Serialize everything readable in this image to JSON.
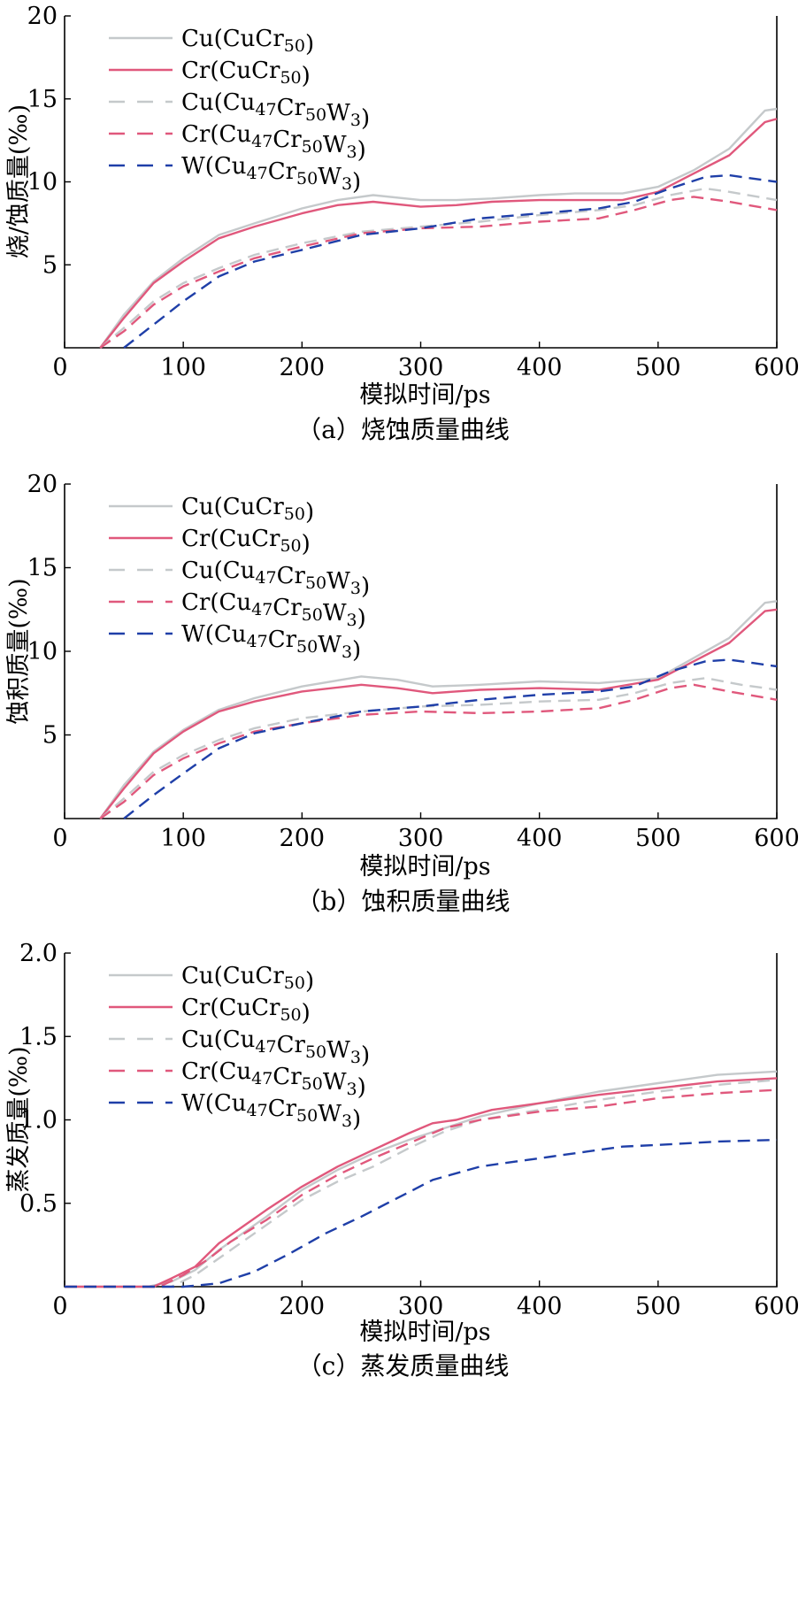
{
  "colors": {
    "cu_cucr": "#c5c9cb",
    "cr_cucr": "#e0587c",
    "cu_w": "#c5c9cb",
    "cr_w": "#e0587c",
    "w_w": "#1f3fa8"
  },
  "legend": [
    {
      "key": "cu_cucr",
      "base": "Cu(CuCr",
      "sub": "50",
      "tail": ")",
      "dash": false
    },
    {
      "key": "cr_cucr",
      "base": "Cr(CuCr",
      "sub": "50",
      "tail": ")",
      "dash": false
    },
    {
      "key": "cu_w",
      "base": "Cu(Cu",
      "sub": "47",
      "mid": "Cr",
      "sub2": "50",
      "mid2": "W",
      "sub3": "3",
      "tail": ")",
      "dash": true
    },
    {
      "key": "cr_w",
      "base": "Cr(Cu",
      "sub": "47",
      "mid": "Cr",
      "sub2": "50",
      "mid2": "W",
      "sub3": "3",
      "tail": ")",
      "dash": true
    },
    {
      "key": "w_w",
      "base": "W(Cu",
      "sub": "47",
      "mid": "Cr",
      "sub2": "50",
      "mid2": "W",
      "sub3": "3",
      "tail": ")",
      "dash": true
    }
  ],
  "chart_data": [
    {
      "type": "line",
      "caption": "（a）烧蚀质量曲线",
      "xlabel": "模拟时间/ps",
      "ylabel": "烧/蚀质量(‰)",
      "xlim": [
        0,
        600
      ],
      "ylim": [
        0,
        20
      ],
      "xticks": [
        "0",
        "100",
        "200",
        "300",
        "400",
        "500",
        "600"
      ],
      "yticks": [
        "5",
        "10",
        "15",
        "20"
      ],
      "ytick_values": [
        5,
        10,
        15,
        20
      ],
      "series": [
        {
          "name": "Cu(CuCr50)",
          "key": "cu_cucr",
          "x": [
            30,
            50,
            75,
            100,
            130,
            160,
            200,
            230,
            260,
            300,
            330,
            360,
            400,
            430,
            470,
            500,
            530,
            560,
            590,
            600
          ],
          "y": [
            0,
            2,
            4,
            5.4,
            6.8,
            7.5,
            8.4,
            8.9,
            9.2,
            8.9,
            8.9,
            9.0,
            9.2,
            9.3,
            9.3,
            9.7,
            10.7,
            12.0,
            14.3,
            14.4
          ]
        },
        {
          "name": "Cr(CuCr50)",
          "key": "cr_cucr",
          "x": [
            30,
            50,
            75,
            100,
            130,
            160,
            200,
            230,
            260,
            300,
            330,
            360,
            400,
            430,
            470,
            500,
            530,
            560,
            590,
            600
          ],
          "y": [
            0,
            1.8,
            3.9,
            5.2,
            6.6,
            7.3,
            8.1,
            8.6,
            8.8,
            8.5,
            8.6,
            8.8,
            8.9,
            8.9,
            8.9,
            9.4,
            10.5,
            11.6,
            13.6,
            13.8
          ]
        },
        {
          "name": "Cu(Cu47Cr50W3)",
          "key": "cu_w",
          "x": [
            30,
            50,
            75,
            100,
            130,
            160,
            200,
            250,
            300,
            350,
            400,
            450,
            480,
            510,
            540,
            560,
            600
          ],
          "y": [
            0,
            1.2,
            2.8,
            3.9,
            4.8,
            5.6,
            6.3,
            7.0,
            7.3,
            7.6,
            8.0,
            8.3,
            8.6,
            9.2,
            9.6,
            9.4,
            8.9
          ]
        },
        {
          "name": "Cr(Cu47Cr50W3)",
          "key": "cr_w",
          "x": [
            30,
            50,
            75,
            100,
            130,
            160,
            200,
            250,
            300,
            350,
            400,
            450,
            480,
            510,
            530,
            560,
            600
          ],
          "y": [
            0,
            1.0,
            2.6,
            3.7,
            4.6,
            5.4,
            6.1,
            6.9,
            7.2,
            7.3,
            7.6,
            7.8,
            8.3,
            8.9,
            9.1,
            8.8,
            8.3
          ]
        },
        {
          "name": "W(Cu47Cr50W3)",
          "key": "w_w",
          "x": [
            50,
            75,
            100,
            130,
            160,
            200,
            250,
            300,
            350,
            400,
            450,
            480,
            510,
            540,
            560,
            580,
            600
          ],
          "y": [
            0,
            1.4,
            2.8,
            4.3,
            5.2,
            5.9,
            6.8,
            7.2,
            7.8,
            8.1,
            8.4,
            8.8,
            9.6,
            10.3,
            10.4,
            10.2,
            10.0
          ]
        }
      ]
    },
    {
      "type": "line",
      "caption": "（b）蚀积质量曲线",
      "xlabel": "模拟时间/ps",
      "ylabel": "蚀积质量(‰)",
      "xlim": [
        0,
        600
      ],
      "ylim": [
        0,
        20
      ],
      "xticks": [
        "0",
        "100",
        "200",
        "300",
        "400",
        "500",
        "600"
      ],
      "yticks": [
        "5",
        "10",
        "15",
        "20"
      ],
      "ytick_values": [
        5,
        10,
        15,
        20
      ],
      "series": [
        {
          "name": "Cu(CuCr50)",
          "key": "cu_cucr",
          "x": [
            30,
            50,
            75,
            100,
            130,
            160,
            200,
            250,
            280,
            310,
            350,
            400,
            450,
            500,
            530,
            560,
            590,
            600
          ],
          "y": [
            0,
            2,
            4,
            5.3,
            6.5,
            7.2,
            7.9,
            8.5,
            8.3,
            7.9,
            8.0,
            8.2,
            8.1,
            8.4,
            9.6,
            10.8,
            12.9,
            13.0
          ]
        },
        {
          "name": "Cr(CuCr50)",
          "key": "cr_cucr",
          "x": [
            30,
            50,
            75,
            100,
            130,
            160,
            200,
            250,
            280,
            310,
            350,
            400,
            450,
            500,
            530,
            560,
            590,
            600
          ],
          "y": [
            0,
            1.8,
            3.9,
            5.2,
            6.4,
            7.0,
            7.6,
            8.0,
            7.8,
            7.5,
            7.7,
            7.8,
            7.7,
            8.3,
            9.4,
            10.5,
            12.4,
            12.5
          ]
        },
        {
          "name": "Cu(Cu47Cr50W3)",
          "key": "cu_w",
          "x": [
            30,
            50,
            75,
            100,
            130,
            160,
            200,
            250,
            300,
            350,
            400,
            450,
            480,
            510,
            540,
            570,
            600
          ],
          "y": [
            0,
            1.2,
            2.8,
            3.8,
            4.7,
            5.4,
            6.0,
            6.4,
            6.7,
            6.8,
            7.0,
            7.1,
            7.5,
            8.1,
            8.4,
            8.0,
            7.7
          ]
        },
        {
          "name": "Cr(Cu47Cr50W3)",
          "key": "cr_w",
          "x": [
            30,
            50,
            75,
            100,
            130,
            160,
            200,
            250,
            300,
            350,
            400,
            450,
            480,
            510,
            530,
            560,
            600
          ],
          "y": [
            0,
            1.0,
            2.6,
            3.6,
            4.5,
            5.2,
            5.7,
            6.2,
            6.4,
            6.3,
            6.4,
            6.6,
            7.1,
            7.8,
            8.0,
            7.6,
            7.1
          ]
        },
        {
          "name": "W(Cu47Cr50W3)",
          "key": "w_w",
          "x": [
            50,
            75,
            100,
            130,
            160,
            200,
            250,
            300,
            350,
            400,
            450,
            480,
            510,
            540,
            560,
            580,
            600
          ],
          "y": [
            0,
            1.4,
            2.7,
            4.2,
            5.1,
            5.7,
            6.4,
            6.7,
            7.1,
            7.4,
            7.6,
            7.9,
            8.8,
            9.4,
            9.5,
            9.3,
            9.1
          ]
        }
      ]
    },
    {
      "type": "line",
      "caption": "（c）蒸发质量曲线",
      "xlabel": "模拟时间/ps",
      "ylabel": "蒸发质量(‰)",
      "xlim": [
        0,
        600
      ],
      "ylim": [
        0,
        2.0
      ],
      "xticks": [
        "0",
        "100",
        "200",
        "300",
        "400",
        "500",
        "600"
      ],
      "yticks": [
        "0.5",
        "1.0",
        "1.5",
        "2.0"
      ],
      "ytick_values": [
        0.5,
        1.0,
        1.5,
        2.0
      ],
      "series": [
        {
          "name": "Cu(CuCr50)",
          "key": "cu_cucr",
          "x": [
            0,
            70,
            90,
            110,
            130,
            150,
            170,
            200,
            230,
            260,
            290,
            320,
            350,
            400,
            450,
            500,
            550,
            600
          ],
          "y": [
            0,
            0,
            0.03,
            0.1,
            0.22,
            0.32,
            0.42,
            0.58,
            0.7,
            0.8,
            0.88,
            0.95,
            1.02,
            1.1,
            1.17,
            1.22,
            1.27,
            1.29
          ]
        },
        {
          "name": "Cr(CuCr50)",
          "key": "cr_cucr",
          "x": [
            0,
            75,
            90,
            110,
            130,
            150,
            170,
            200,
            230,
            260,
            290,
            310,
            330,
            360,
            400,
            450,
            500,
            550,
            600
          ],
          "y": [
            0,
            0,
            0.05,
            0.12,
            0.26,
            0.36,
            0.46,
            0.6,
            0.72,
            0.82,
            0.92,
            0.98,
            1.0,
            1.06,
            1.1,
            1.15,
            1.19,
            1.23,
            1.25
          ]
        },
        {
          "name": "Cu(Cu47Cr50W3)",
          "key": "cu_w",
          "x": [
            0,
            90,
            110,
            130,
            150,
            170,
            200,
            230,
            260,
            290,
            320,
            350,
            400,
            450,
            500,
            550,
            600
          ],
          "y": [
            0,
            0,
            0.07,
            0.17,
            0.27,
            0.37,
            0.52,
            0.63,
            0.72,
            0.83,
            0.93,
            1.0,
            1.06,
            1.12,
            1.17,
            1.21,
            1.24
          ]
        },
        {
          "name": "Cr(Cu47Cr50W3)",
          "key": "cr_w",
          "x": [
            0,
            80,
            100,
            120,
            140,
            170,
            200,
            230,
            260,
            290,
            320,
            350,
            400,
            450,
            500,
            550,
            600
          ],
          "y": [
            0,
            0,
            0.07,
            0.16,
            0.27,
            0.4,
            0.55,
            0.67,
            0.77,
            0.86,
            0.95,
            1.0,
            1.05,
            1.08,
            1.13,
            1.16,
            1.18
          ]
        },
        {
          "name": "W(Cu47Cr50W3)",
          "key": "w_w",
          "x": [
            0,
            100,
            130,
            160,
            190,
            220,
            250,
            280,
            310,
            350,
            380,
            410,
            440,
            470,
            500,
            550,
            600
          ],
          "y": [
            0,
            0,
            0.02,
            0.09,
            0.2,
            0.32,
            0.42,
            0.53,
            0.64,
            0.72,
            0.75,
            0.78,
            0.81,
            0.84,
            0.85,
            0.87,
            0.88
          ]
        }
      ]
    }
  ]
}
